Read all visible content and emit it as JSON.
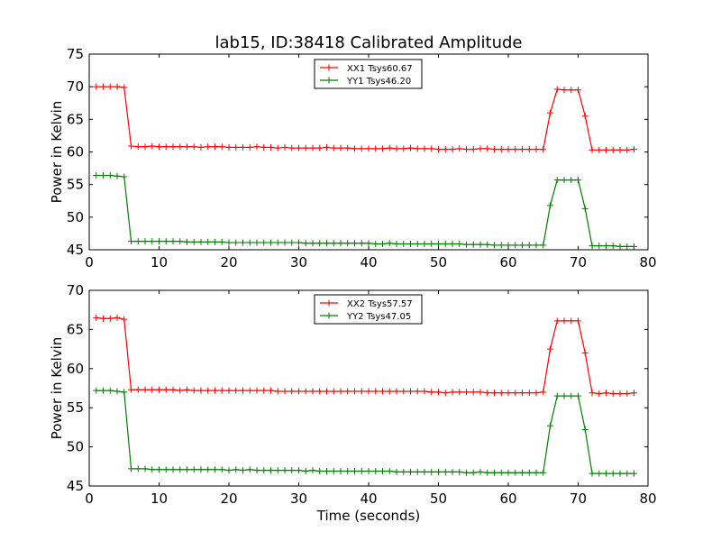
{
  "chart_data": [
    {
      "type": "line",
      "title": "lab15, ID:38418 Calibrated Amplitude",
      "xlabel": "",
      "ylabel": "Power in Kelvin",
      "xlim": [
        0,
        80
      ],
      "ylim": [
        45,
        75
      ],
      "xticks": [
        0,
        10,
        20,
        30,
        40,
        50,
        60,
        70,
        80
      ],
      "yticks": [
        45,
        50,
        55,
        60,
        65,
        70,
        75
      ],
      "grid": false,
      "legend_position": "top-center",
      "series": [
        {
          "name": "XX1 Tsys60.67",
          "color": "#ff0000",
          "x": [
            1,
            2,
            3,
            4,
            5,
            6,
            7,
            8,
            9,
            10,
            11,
            12,
            13,
            14,
            15,
            16,
            17,
            18,
            19,
            20,
            21,
            22,
            23,
            24,
            25,
            26,
            27,
            28,
            29,
            30,
            31,
            32,
            33,
            34,
            35,
            36,
            37,
            38,
            39,
            40,
            41,
            42,
            43,
            44,
            45,
            46,
            47,
            48,
            49,
            50,
            51,
            52,
            53,
            54,
            55,
            56,
            57,
            58,
            59,
            60,
            61,
            62,
            63,
            64,
            65,
            66,
            67,
            68,
            69,
            70,
            71,
            72,
            73,
            74,
            75,
            76,
            77,
            78
          ],
          "y": [
            70.0,
            70.0,
            70.0,
            70.0,
            69.9,
            60.9,
            60.8,
            60.8,
            60.9,
            60.8,
            60.8,
            60.8,
            60.8,
            60.8,
            60.8,
            60.7,
            60.8,
            60.8,
            60.8,
            60.7,
            60.7,
            60.7,
            60.7,
            60.8,
            60.7,
            60.7,
            60.6,
            60.7,
            60.6,
            60.6,
            60.6,
            60.6,
            60.6,
            60.7,
            60.6,
            60.6,
            60.6,
            60.5,
            60.5,
            60.5,
            60.5,
            60.5,
            60.6,
            60.5,
            60.5,
            60.6,
            60.5,
            60.5,
            60.5,
            60.4,
            60.4,
            60.4,
            60.5,
            60.4,
            60.4,
            60.5,
            60.5,
            60.4,
            60.4,
            60.4,
            60.4,
            60.4,
            60.4,
            60.4,
            60.4,
            66.0,
            69.6,
            69.5,
            69.5,
            69.5,
            65.5,
            60.3,
            60.3,
            60.3,
            60.3,
            60.3,
            60.3,
            60.4
          ]
        },
        {
          "name": "YY1 Tsys46.20",
          "color": "#008000",
          "x": [
            1,
            2,
            3,
            4,
            5,
            6,
            7,
            8,
            9,
            10,
            11,
            12,
            13,
            14,
            15,
            16,
            17,
            18,
            19,
            20,
            21,
            22,
            23,
            24,
            25,
            26,
            27,
            28,
            29,
            30,
            31,
            32,
            33,
            34,
            35,
            36,
            37,
            38,
            39,
            40,
            41,
            42,
            43,
            44,
            45,
            46,
            47,
            48,
            49,
            50,
            51,
            52,
            53,
            54,
            55,
            56,
            57,
            58,
            59,
            60,
            61,
            62,
            63,
            64,
            65,
            66,
            67,
            68,
            69,
            70,
            71,
            72,
            73,
            74,
            75,
            76,
            77,
            78
          ],
          "y": [
            56.4,
            56.4,
            56.4,
            56.3,
            56.2,
            46.3,
            46.3,
            46.3,
            46.3,
            46.3,
            46.3,
            46.3,
            46.3,
            46.2,
            46.2,
            46.2,
            46.2,
            46.2,
            46.2,
            46.1,
            46.1,
            46.1,
            46.1,
            46.1,
            46.1,
            46.1,
            46.1,
            46.1,
            46.1,
            46.1,
            46.0,
            46.0,
            46.0,
            46.0,
            46.0,
            46.0,
            46.0,
            46.0,
            46.0,
            46.0,
            45.9,
            45.9,
            46.0,
            45.9,
            45.9,
            45.9,
            45.9,
            45.9,
            45.9,
            45.9,
            45.9,
            45.9,
            45.9,
            45.8,
            45.8,
            45.8,
            45.8,
            45.7,
            45.7,
            45.7,
            45.7,
            45.7,
            45.7,
            45.7,
            45.7,
            51.8,
            55.7,
            55.7,
            55.7,
            55.7,
            51.3,
            45.6,
            45.6,
            45.6,
            45.6,
            45.5,
            45.5,
            45.5
          ]
        }
      ]
    },
    {
      "type": "line",
      "title": "",
      "xlabel": "Time (seconds)",
      "ylabel": "Power in Kelvin",
      "xlim": [
        0,
        80
      ],
      "ylim": [
        45,
        70
      ],
      "xticks": [
        0,
        10,
        20,
        30,
        40,
        50,
        60,
        70,
        80
      ],
      "yticks": [
        45,
        50,
        55,
        60,
        65,
        70
      ],
      "grid": false,
      "legend_position": "top-center",
      "series": [
        {
          "name": "XX2 Tsys57.57",
          "color": "#ff0000",
          "x": [
            1,
            2,
            3,
            4,
            5,
            6,
            7,
            8,
            9,
            10,
            11,
            12,
            13,
            14,
            15,
            16,
            17,
            18,
            19,
            20,
            21,
            22,
            23,
            24,
            25,
            26,
            27,
            28,
            29,
            30,
            31,
            32,
            33,
            34,
            35,
            36,
            37,
            38,
            39,
            40,
            41,
            42,
            43,
            44,
            45,
            46,
            47,
            48,
            49,
            50,
            51,
            52,
            53,
            54,
            55,
            56,
            57,
            58,
            59,
            60,
            61,
            62,
            63,
            64,
            65,
            66,
            67,
            68,
            69,
            70,
            71,
            72,
            73,
            74,
            75,
            76,
            77,
            78
          ],
          "y": [
            66.5,
            66.4,
            66.4,
            66.5,
            66.3,
            57.3,
            57.3,
            57.3,
            57.3,
            57.3,
            57.3,
            57.3,
            57.2,
            57.3,
            57.2,
            57.2,
            57.2,
            57.2,
            57.2,
            57.2,
            57.2,
            57.2,
            57.2,
            57.2,
            57.2,
            57.2,
            57.1,
            57.1,
            57.1,
            57.1,
            57.1,
            57.1,
            57.1,
            57.1,
            57.1,
            57.1,
            57.1,
            57.1,
            57.1,
            57.1,
            57.1,
            57.1,
            57.1,
            57.1,
            57.1,
            57.1,
            57.1,
            57.1,
            57.0,
            57.0,
            56.9,
            57.0,
            57.0,
            57.0,
            57.0,
            57.0,
            56.9,
            56.9,
            56.9,
            56.9,
            56.9,
            56.9,
            56.9,
            56.9,
            57.0,
            62.5,
            66.1,
            66.1,
            66.1,
            66.1,
            62.0,
            56.9,
            56.8,
            56.9,
            56.8,
            56.8,
            56.8,
            56.9
          ]
        },
        {
          "name": "YY2 Tsys47.05",
          "color": "#008000",
          "x": [
            1,
            2,
            3,
            4,
            5,
            6,
            7,
            8,
            9,
            10,
            11,
            12,
            13,
            14,
            15,
            16,
            17,
            18,
            19,
            20,
            21,
            22,
            23,
            24,
            25,
            26,
            27,
            28,
            29,
            30,
            31,
            32,
            33,
            34,
            35,
            36,
            37,
            38,
            39,
            40,
            41,
            42,
            43,
            44,
            45,
            46,
            47,
            48,
            49,
            50,
            51,
            52,
            53,
            54,
            55,
            56,
            57,
            58,
            59,
            60,
            61,
            62,
            63,
            64,
            65,
            66,
            67,
            68,
            69,
            70,
            71,
            72,
            73,
            74,
            75,
            76,
            77,
            78
          ],
          "y": [
            57.2,
            57.2,
            57.2,
            57.1,
            57.0,
            47.2,
            47.2,
            47.2,
            47.1,
            47.1,
            47.1,
            47.1,
            47.1,
            47.1,
            47.1,
            47.1,
            47.1,
            47.1,
            47.1,
            47.0,
            47.1,
            47.0,
            47.1,
            47.0,
            47.0,
            47.0,
            47.0,
            47.0,
            47.0,
            47.0,
            46.9,
            47.0,
            46.9,
            46.9,
            46.9,
            46.9,
            46.9,
            46.9,
            46.9,
            46.9,
            46.9,
            46.9,
            46.9,
            46.8,
            46.8,
            46.8,
            46.8,
            46.8,
            46.8,
            46.8,
            46.8,
            46.8,
            46.8,
            46.7,
            46.7,
            46.8,
            46.7,
            46.7,
            46.7,
            46.7,
            46.7,
            46.7,
            46.7,
            46.7,
            46.7,
            52.7,
            56.5,
            56.5,
            56.5,
            56.5,
            52.2,
            46.6,
            46.6,
            46.6,
            46.6,
            46.6,
            46.6,
            46.6
          ]
        }
      ]
    }
  ]
}
